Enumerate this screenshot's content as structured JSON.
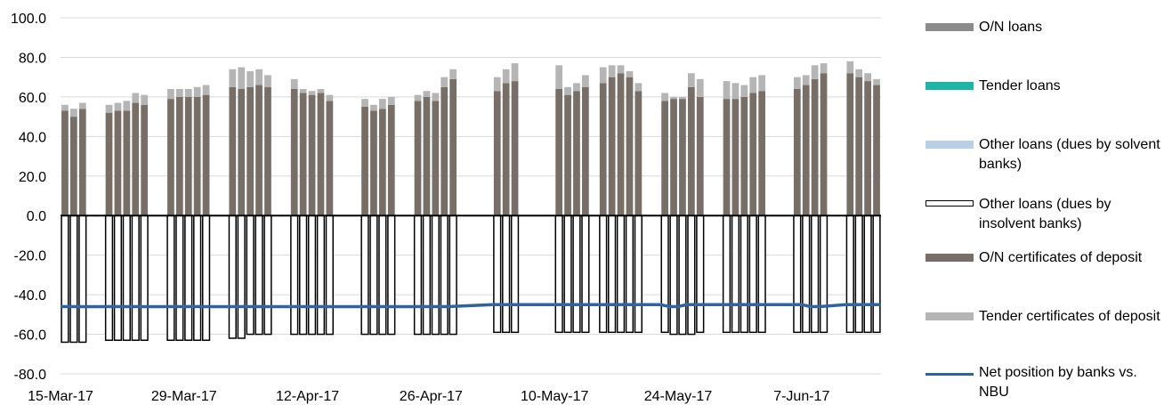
{
  "chart_data": {
    "type": "bar",
    "ylim": [
      -80,
      100
    ],
    "yticks": [
      100.0,
      80.0,
      60.0,
      40.0,
      20.0,
      0.0,
      -20.0,
      -40.0,
      -60.0,
      -80.0
    ],
    "ytick_labels": [
      "100.0",
      "80.0",
      "60.0",
      "40.0",
      "20.0",
      "0.0",
      "-20.0",
      "-40.0",
      "-60.0",
      "-80.0"
    ],
    "xtick_labels": [
      "15-Mar-17",
      "29-Mar-17",
      "12-Apr-17",
      "26-Apr-17",
      "10-May-17",
      "24-May-17",
      "7-Jun-17"
    ],
    "x": [
      "15-Mar-17",
      "16-Mar-17",
      "17-Mar-17",
      "20-Mar-17",
      "21-Mar-17",
      "22-Mar-17",
      "23-Mar-17",
      "24-Mar-17",
      "27-Mar-17",
      "28-Mar-17",
      "29-Mar-17",
      "30-Mar-17",
      "31-Mar-17",
      "3-Apr-17",
      "4-Apr-17",
      "5-Apr-17",
      "6-Apr-17",
      "7-Apr-17",
      "10-Apr-17",
      "11-Apr-17",
      "12-Apr-17",
      "13-Apr-17",
      "14-Apr-17",
      "18-Apr-17",
      "19-Apr-17",
      "20-Apr-17",
      "21-Apr-17",
      "24-Apr-17",
      "25-Apr-17",
      "26-Apr-17",
      "27-Apr-17",
      "28-Apr-17",
      "3-May-17",
      "4-May-17",
      "5-May-17",
      "10-May-17",
      "11-May-17",
      "12-May-17",
      "13-May-17",
      "15-May-17",
      "16-May-17",
      "17-May-17",
      "18-May-17",
      "19-May-17",
      "22-May-17",
      "23-May-17",
      "24-May-17",
      "25-May-17",
      "26-May-17",
      "29-May-17",
      "30-May-17",
      "31-May-17",
      "1-Jun-17",
      "2-Jun-17",
      "6-Jun-17",
      "7-Jun-17",
      "8-Jun-17",
      "9-Jun-17",
      "12-Jun-17",
      "13-Jun-17",
      "14-Jun-17",
      "15-Jun-17"
    ],
    "series": [
      {
        "name": "O/N loans",
        "color": "#8c8c8c",
        "values": [
          0,
          0,
          0,
          0,
          0,
          0,
          0,
          0,
          0,
          0,
          0,
          0,
          0,
          0,
          0,
          0,
          0,
          0,
          0,
          0,
          0,
          0,
          0,
          0,
          0,
          0,
          0,
          0,
          0,
          0,
          0,
          0,
          0,
          0,
          0,
          0,
          0,
          0,
          0,
          0,
          0,
          0,
          0,
          0,
          0,
          0,
          0,
          0,
          0,
          0,
          0,
          0,
          0,
          0,
          0,
          0,
          0,
          0,
          0,
          0,
          0,
          0
        ]
      },
      {
        "name": "Tender loans",
        "color": "#1fb5a6",
        "values": [
          0,
          0,
          0,
          0,
          0,
          0,
          0,
          0,
          0,
          0,
          0,
          0,
          0,
          0,
          0,
          0,
          0,
          0,
          0,
          0,
          0,
          0,
          0,
          0,
          0,
          0,
          0,
          0,
          0,
          0,
          0,
          0,
          0,
          0,
          0,
          0,
          0,
          0,
          0,
          0,
          0,
          0,
          0,
          0,
          0,
          0,
          0,
          0,
          0,
          0,
          0,
          0,
          0,
          0,
          0,
          0,
          0,
          0,
          0,
          0,
          0,
          0
        ]
      },
      {
        "name": "Other loans (dues by solvent  banks)",
        "color": "#b8cfe6",
        "values": [
          0,
          0,
          0,
          0,
          0,
          0,
          0,
          0,
          0,
          0,
          0,
          0,
          0,
          0,
          0,
          0,
          0,
          0,
          0,
          0,
          0,
          0,
          0,
          0,
          0,
          0,
          0,
          0,
          0,
          0,
          0,
          0,
          0,
          0,
          0,
          0,
          0,
          0,
          0,
          0,
          0,
          0,
          0,
          0,
          0,
          0,
          0,
          0,
          0,
          0,
          0,
          0,
          0,
          0,
          0,
          0,
          0,
          0,
          0,
          0,
          0,
          0
        ]
      },
      {
        "name": "Other loans (dues by insolvent  banks)",
        "color": "#ffffff",
        "values": [
          -64,
          -64,
          -64,
          -63,
          -63,
          -63,
          -63,
          -63,
          -63,
          -63,
          -63,
          -63,
          -63,
          -62,
          -62,
          -60,
          -60,
          -60,
          -60,
          -60,
          -60,
          -60,
          -60,
          -60,
          -60,
          -60,
          -60,
          -60,
          -60,
          -60,
          -60,
          -60,
          -59,
          -59,
          -59,
          -59,
          -59,
          -59,
          -59,
          -59,
          -59,
          -59,
          -59,
          -59,
          -59,
          -60,
          -60,
          -60,
          -59,
          -59,
          -59,
          -59,
          -59,
          -59,
          -59,
          -59,
          -59,
          -59,
          -59,
          -59,
          -59,
          -59
        ]
      },
      {
        "name": "O/N certificates of deposit",
        "color": "#776e67",
        "values": [
          53,
          50,
          54,
          52,
          53,
          53,
          57,
          56,
          59,
          60,
          60,
          60,
          61,
          65,
          64,
          65,
          66,
          65,
          64,
          62,
          61,
          62,
          58,
          55,
          53,
          54,
          56,
          58,
          60,
          58,
          65,
          69,
          63,
          67,
          68,
          64,
          61,
          63,
          65,
          67,
          70,
          72,
          70,
          63,
          58,
          59,
          59,
          65,
          60,
          59,
          59,
          60,
          62,
          63,
          64,
          66,
          69,
          72,
          72,
          70,
          68,
          66
        ]
      },
      {
        "name": "Tender certificates of deposit",
        "color": "#b5b5b5",
        "values": [
          3,
          4,
          3,
          4,
          4,
          5,
          5,
          5,
          5,
          4,
          4,
          5,
          5,
          9,
          11,
          8,
          8,
          6,
          5,
          2,
          2,
          2,
          3,
          4,
          3,
          5,
          4,
          3,
          3,
          4,
          5,
          5,
          7,
          7,
          9,
          12,
          4,
          4,
          6,
          8,
          6,
          4,
          3,
          4,
          4,
          1,
          1,
          7,
          9,
          9,
          8,
          6,
          8,
          8,
          6,
          5,
          7,
          5,
          6,
          4,
          4,
          3
        ]
      }
    ],
    "net_position": {
      "name": "Net position by banks vs. NBU",
      "color": "#2e62a0",
      "values": [
        -46,
        -46,
        -46,
        -46,
        -46,
        -46,
        -46,
        -46,
        -46,
        -46,
        -46,
        -46,
        -46,
        -46,
        -46,
        -46,
        -46,
        -46,
        -46,
        -46,
        -46,
        -46,
        -46,
        -46,
        -46,
        -46,
        -46,
        -46,
        -46,
        -46,
        -46,
        -46,
        -45,
        -45,
        -45,
        -45,
        -45,
        -45,
        -45,
        -45,
        -45,
        -45,
        -45,
        -45,
        -45,
        -46,
        -46,
        -45,
        -45,
        -45,
        -45,
        -45,
        -45,
        -45,
        -45,
        -45,
        -46,
        -46,
        -45,
        -45,
        -45,
        -45
      ]
    }
  },
  "legend": [
    {
      "key": "on_loans",
      "label": "O/N loans",
      "swatch": "bar",
      "color": "#8c8c8c"
    },
    {
      "key": "tender_loans",
      "label": "Tender loans",
      "swatch": "bar",
      "color": "#1fb5a6"
    },
    {
      "key": "other_solvent",
      "label": "Other loans (dues by solvent  banks)",
      "swatch": "bar",
      "color": "#b8cfe6"
    },
    {
      "key": "other_insolvent",
      "label": "Other loans (dues by insolvent  banks)",
      "swatch": "outline",
      "color": "#ffffff"
    },
    {
      "key": "on_cd",
      "label": "O/N certificates of deposit",
      "swatch": "bar",
      "color": "#776e67"
    },
    {
      "key": "tender_cd",
      "label": "Tender certificates of deposit",
      "swatch": "bar",
      "color": "#b5b5b5"
    },
    {
      "key": "net_position",
      "label": "Net position by banks vs. NBU",
      "swatch": "line",
      "color": "#2e62a0"
    }
  ]
}
